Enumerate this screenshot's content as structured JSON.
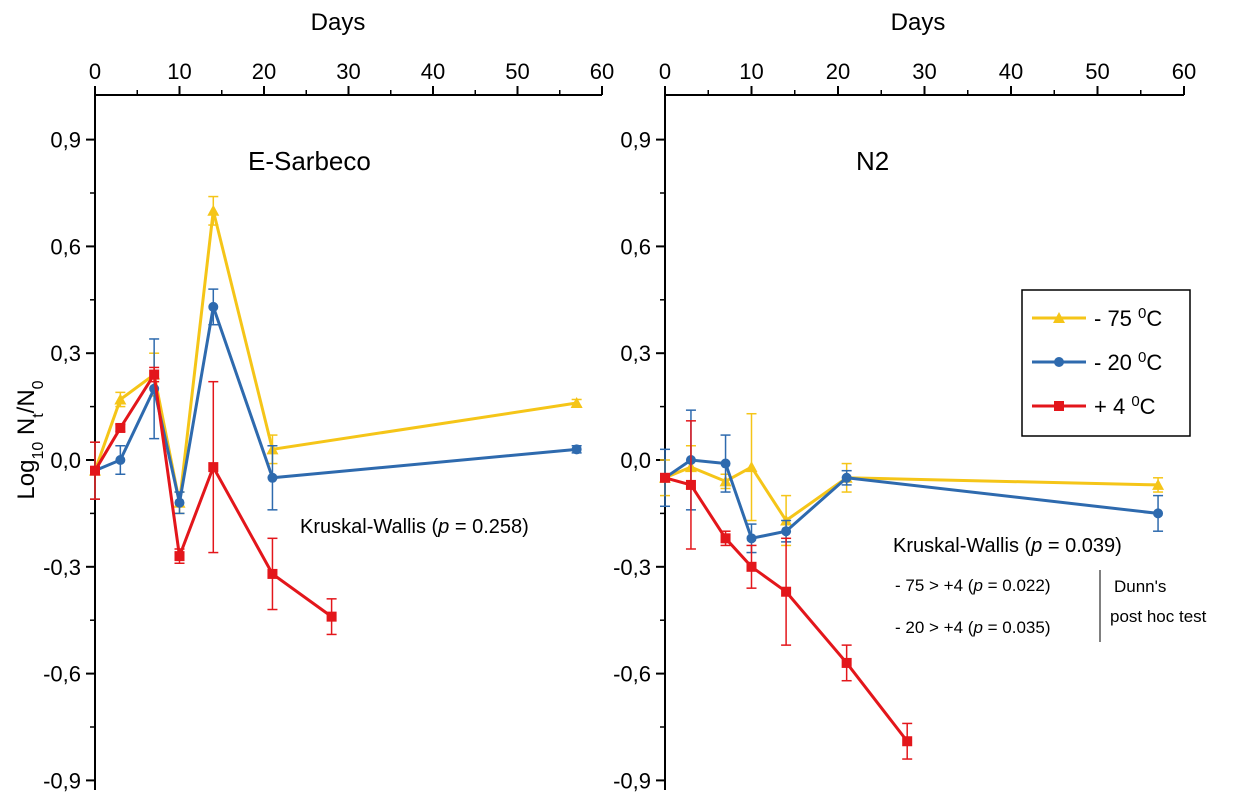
{
  "chart_data": [
    {
      "type": "line",
      "title": "E-Sarbeco",
      "xlabel": "Days",
      "ylabel": "Log10 Nt/N0",
      "xlim": [
        0,
        60
      ],
      "ylim": [
        -1.0,
        1.0
      ],
      "xticks": [
        "0",
        "10",
        "20",
        "30",
        "40",
        "50",
        "60"
      ],
      "yticks": [
        "0,9",
        "0,6",
        "0,3",
        "0,0",
        "-0,3",
        "-0,6",
        "-0,9"
      ],
      "series": [
        {
          "name": "- 75 0C",
          "color": "#F5C518",
          "marker": "triangle",
          "x": [
            0,
            3,
            7,
            10,
            14,
            21,
            57
          ],
          "y": [
            -0.03,
            0.17,
            0.24,
            -0.12,
            0.7,
            0.03,
            0.16
          ],
          "err": [
            0.08,
            0.02,
            0.06,
            0.03,
            0.04,
            0.04,
            0.01
          ]
        },
        {
          "name": "- 20 0C",
          "color": "#2E6AAE",
          "marker": "circle",
          "x": [
            0,
            3,
            7,
            10,
            14,
            21,
            57
          ],
          "y": [
            -0.03,
            0.0,
            0.2,
            -0.12,
            0.43,
            -0.05,
            0.03
          ],
          "err": [
            0.08,
            0.04,
            0.14,
            0.03,
            0.05,
            0.09,
            0.01
          ]
        },
        {
          "name": "+ 4 0C",
          "color": "#E3161B",
          "marker": "square",
          "x": [
            0,
            3,
            7,
            10,
            14,
            21,
            28
          ],
          "y": [
            -0.03,
            0.09,
            0.24,
            -0.27,
            -0.02,
            -0.32,
            -0.44
          ],
          "err": [
            0.08,
            0.01,
            0.02,
            0.02,
            0.24,
            0.1,
            0.05
          ]
        }
      ],
      "annotations": [
        "Kruskal-Wallis (",
        "p",
        " = 0.258)"
      ]
    },
    {
      "type": "line",
      "title": "N2",
      "xlabel": "Days",
      "xlim": [
        0,
        60
      ],
      "ylim": [
        -1.0,
        1.0
      ],
      "xticks": [
        "0",
        "10",
        "20",
        "30",
        "40",
        "50",
        "60"
      ],
      "yticks": [
        "0,9",
        "0,6",
        "0,3",
        "0,0",
        "-0,3",
        "-0,6",
        "-0,9"
      ],
      "series": [
        {
          "name": "- 75 0C",
          "color": "#F5C518",
          "marker": "triangle",
          "x": [
            0,
            3,
            7,
            10,
            14,
            21,
            57
          ],
          "y": [
            -0.05,
            -0.02,
            -0.06,
            -0.02,
            -0.17,
            -0.05,
            -0.07
          ],
          "err": [
            0.05,
            0.06,
            0.02,
            0.15,
            0.07,
            0.04,
            0.02
          ]
        },
        {
          "name": "- 20 0C",
          "color": "#2E6AAE",
          "marker": "circle",
          "x": [
            0,
            3,
            7,
            10,
            14,
            21,
            57
          ],
          "y": [
            -0.05,
            0.0,
            -0.01,
            -0.22,
            -0.2,
            -0.05,
            -0.15
          ],
          "err": [
            0.08,
            0.14,
            0.08,
            0.04,
            0.03,
            0.02,
            0.05
          ]
        },
        {
          "name": "+ 4 0C",
          "color": "#E3161B",
          "marker": "square",
          "x": [
            0,
            3,
            7,
            10,
            14,
            21,
            28
          ],
          "y": [
            -0.05,
            -0.07,
            -0.22,
            -0.3,
            -0.37,
            -0.57,
            -0.79
          ],
          "err": [
            0.01,
            0.18,
            0.02,
            0.06,
            0.15,
            0.05,
            0.05
          ]
        }
      ],
      "annotations": [
        "Kruskal-Wallis (",
        "p",
        " = 0.039)"
      ],
      "posthoc": {
        "line1": [
          "- 75 > +4 (",
          "p",
          " = 0.022)"
        ],
        "line2": [
          "- 20 > +4 (",
          "p",
          " = 0.035)"
        ],
        "test_line1": "Dunn's",
        "test_line2": "post hoc test"
      },
      "legend": {
        "position": "right",
        "entries": [
          {
            "prefix": "- 75 ",
            "sup": "0",
            "suffix": "C",
            "color": "#F5C518",
            "marker": "triangle"
          },
          {
            "prefix": "- 20 ",
            "sup": "0",
            "suffix": "C",
            "color": "#2E6AAE",
            "marker": "circle"
          },
          {
            "prefix": "+ 4 ",
            "sup": "0",
            "suffix": "C",
            "color": "#E3161B",
            "marker": "square"
          }
        ]
      }
    }
  ],
  "ylabel_parts": {
    "base": "Log",
    "sub1": "10",
    "mid": " N",
    "sub2": "t",
    "slash": "/N",
    "sub3": "0"
  }
}
